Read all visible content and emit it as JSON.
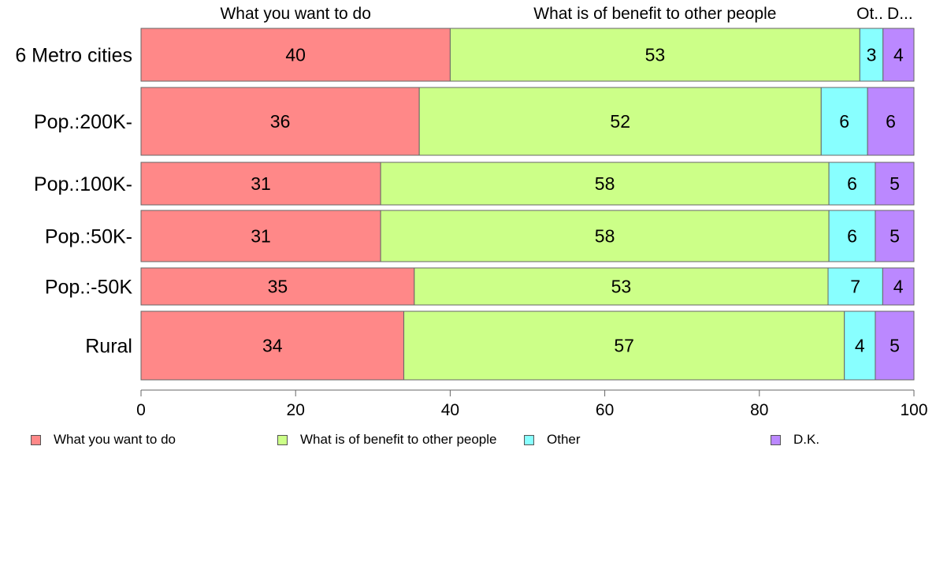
{
  "chart_data": {
    "type": "bar",
    "orientation": "horizontal",
    "stacked": true,
    "categories": [
      "6 Metro cities",
      "Pop.:200K-",
      "Pop.:100K-",
      "Pop.:50K-",
      "Pop.:-50K",
      "Rural"
    ],
    "series": [
      {
        "name": "What you want to do",
        "color": "#ff8888",
        "values": [
          40,
          36,
          31,
          31,
          35,
          34
        ],
        "labels": [
          "40",
          "36",
          "31",
          "31",
          "35",
          "34"
        ]
      },
      {
        "name": "What is of benefit to other people",
        "color": "#ccff88",
        "values": [
          53,
          52,
          58,
          58,
          53,
          57
        ],
        "labels": [
          "53",
          "52",
          "58",
          "58",
          "53",
          "57"
        ]
      },
      {
        "name": "Other",
        "color": "#88ffff",
        "values": [
          3,
          6,
          6,
          6,
          7,
          4
        ],
        "labels": [
          "3",
          "6",
          "6",
          "6",
          "7",
          "4"
        ]
      },
      {
        "name": "D.K.",
        "color": "#bb88ff",
        "values": [
          4,
          6,
          5,
          5,
          4,
          5
        ],
        "labels": [
          "4",
          "6",
          "5",
          "5",
          "4",
          "5"
        ]
      }
    ],
    "top_labels": [
      "What you want to do",
      "What is of benefit to other people",
      "Ot..",
      "D..."
    ],
    "x_ticks": [
      "0",
      "20",
      "40",
      "60",
      "80",
      "100"
    ],
    "xlim": [
      0,
      100
    ],
    "grid": false,
    "legend_position": "bottom"
  }
}
